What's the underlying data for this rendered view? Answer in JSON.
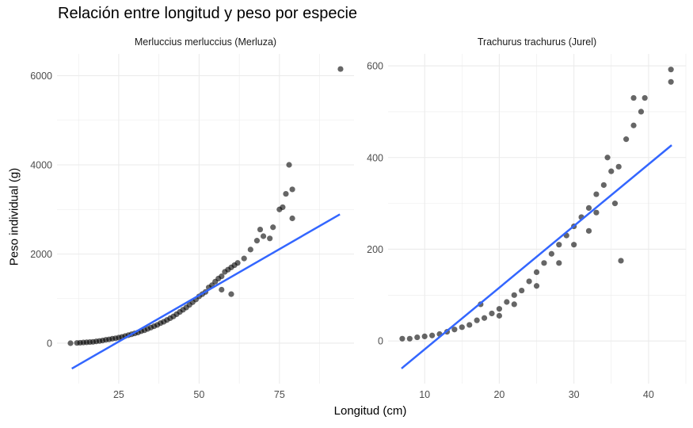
{
  "chart_data": [
    {
      "type": "scatter",
      "facet_label": "Merluccius merluccius (Merluza)",
      "xlim": [
        5.8,
        98.2
      ],
      "ylim": [
        -907,
        6489
      ],
      "xticks": [
        25,
        50,
        75
      ],
      "yticks": [
        0,
        2000,
        4000,
        6000
      ],
      "grid": true,
      "point_color": "#000000",
      "points": [
        [
          10,
          0
        ],
        [
          12,
          5
        ],
        [
          13,
          10
        ],
        [
          14,
          15
        ],
        [
          15,
          20
        ],
        [
          16,
          25
        ],
        [
          17,
          30
        ],
        [
          18,
          40
        ],
        [
          19,
          50
        ],
        [
          20,
          60
        ],
        [
          21,
          75
        ],
        [
          22,
          85
        ],
        [
          23,
          100
        ],
        [
          24,
          110
        ],
        [
          25,
          125
        ],
        [
          26,
          140
        ],
        [
          27,
          160
        ],
        [
          28,
          180
        ],
        [
          29,
          200
        ],
        [
          30,
          220
        ],
        [
          31,
          240
        ],
        [
          32,
          270
        ],
        [
          33,
          290
        ],
        [
          34,
          320
        ],
        [
          35,
          350
        ],
        [
          36,
          380
        ],
        [
          37,
          410
        ],
        [
          38,
          450
        ],
        [
          39,
          480
        ],
        [
          40,
          520
        ],
        [
          41,
          560
        ],
        [
          42,
          600
        ],
        [
          43,
          650
        ],
        [
          44,
          700
        ],
        [
          45,
          750
        ],
        [
          46,
          800
        ],
        [
          47,
          860
        ],
        [
          48,
          920
        ],
        [
          49,
          980
        ],
        [
          50,
          1050
        ],
        [
          51,
          1100
        ],
        [
          52,
          1150
        ],
        [
          53,
          1250
        ],
        [
          54,
          1300
        ],
        [
          55,
          1380
        ],
        [
          56,
          1450
        ],
        [
          57,
          1500
        ],
        [
          57,
          1200
        ],
        [
          58,
          1600
        ],
        [
          59,
          1650
        ],
        [
          60,
          1700
        ],
        [
          60,
          1100
        ],
        [
          61,
          1750
        ],
        [
          62,
          1800
        ],
        [
          64,
          1900
        ],
        [
          66,
          2100
        ],
        [
          68,
          2300
        ],
        [
          69,
          2550
        ],
        [
          70,
          2400
        ],
        [
          72,
          2350
        ],
        [
          73,
          2600
        ],
        [
          75,
          3000
        ],
        [
          76,
          3050
        ],
        [
          77,
          3350
        ],
        [
          78,
          4000
        ],
        [
          79,
          3450
        ],
        [
          79,
          2800
        ],
        [
          94,
          6150
        ]
      ],
      "fit_line": {
        "color": "#3366FF",
        "x": [
          10.4,
          93.8
        ],
        "y": [
          -570,
          2890
        ]
      }
    },
    {
      "type": "scatter",
      "facet_label": "Trachurus trachurus (Jurel)",
      "xlim": [
        5.1,
        45.0
      ],
      "ylim": [
        -93,
        626
      ],
      "xticks": [
        10,
        20,
        30,
        40
      ],
      "yticks": [
        0,
        200,
        400,
        600
      ],
      "grid": true,
      "point_color": "#000000",
      "points": [
        [
          7,
          5
        ],
        [
          8,
          5
        ],
        [
          9,
          8
        ],
        [
          10,
          10
        ],
        [
          11,
          12
        ],
        [
          12,
          15
        ],
        [
          13,
          20
        ],
        [
          14,
          25
        ],
        [
          15,
          30
        ],
        [
          16,
          35
        ],
        [
          17,
          45
        ],
        [
          17.5,
          80
        ],
        [
          18,
          50
        ],
        [
          19,
          60
        ],
        [
          20,
          70
        ],
        [
          20,
          55
        ],
        [
          21,
          85
        ],
        [
          22,
          100
        ],
        [
          22,
          80
        ],
        [
          23,
          110
        ],
        [
          24,
          130
        ],
        [
          25,
          150
        ],
        [
          25,
          120
        ],
        [
          26,
          170
        ],
        [
          27,
          190
        ],
        [
          28,
          210
        ],
        [
          28,
          170
        ],
        [
          29,
          230
        ],
        [
          30,
          250
        ],
        [
          30,
          210
        ],
        [
          31,
          270
        ],
        [
          32,
          290
        ],
        [
          32,
          240
        ],
        [
          33,
          320
        ],
        [
          33,
          280
        ],
        [
          34,
          340
        ],
        [
          34.5,
          400
        ],
        [
          35,
          370
        ],
        [
          35.5,
          300
        ],
        [
          36,
          380
        ],
        [
          36.3,
          175
        ],
        [
          37,
          440
        ],
        [
          38,
          470
        ],
        [
          38,
          530
        ],
        [
          39,
          500
        ],
        [
          39.5,
          530
        ],
        [
          43,
          565
        ],
        [
          43,
          592
        ]
      ],
      "fit_line": {
        "color": "#3366FF",
        "x": [
          6.9,
          43.1
        ],
        "y": [
          -60,
          427
        ]
      }
    }
  ],
  "title": "Relación entre longitud y peso por especie",
  "xlabel": "Longitud (cm)",
  "ylabel": "Peso individual (g)"
}
